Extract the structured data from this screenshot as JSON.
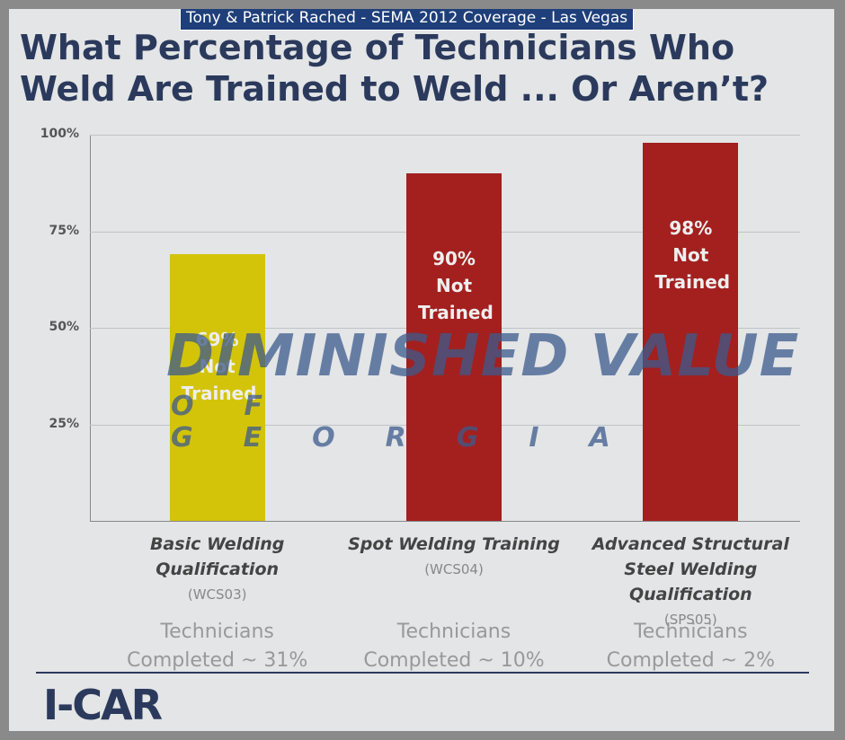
{
  "banner": "Tony & Patrick Rached - SEMA 2012 Coverage - Las Vegas",
  "watermark": {
    "line1": "DIMINISHED VALUE",
    "line2": "OF GEORGIA"
  },
  "logo": "I-CAR",
  "chart_data": {
    "type": "bar",
    "title": "What Percentage of Technicians Who Weld Are Trained to Weld ... Or Aren’t?",
    "categories": [
      "Basic Welding Qualification",
      "Spot Welding Training",
      "Advanced Structural Steel Welding Qualification"
    ],
    "category_codes": [
      "(WCS03)",
      "(WCS04)",
      "(SPS05)"
    ],
    "values": [
      69,
      90,
      98
    ],
    "value_labels": [
      "69%",
      "90%",
      "98%"
    ],
    "bar_note": "Not Trained",
    "colors": [
      "#d3c40a",
      "#a3201f",
      "#a3201f"
    ],
    "footnotes": [
      "Technicians Completed ~ 31%",
      "Technicians Completed ~ 10%",
      "Technicians Completed ~ 2%"
    ],
    "ylim": [
      0,
      100
    ],
    "yticks": [
      {
        "value": 25,
        "label": "25%"
      },
      {
        "value": 50,
        "label": "50%"
      },
      {
        "value": 75,
        "label": "75%"
      },
      {
        "value": 100,
        "label": "100%"
      }
    ],
    "grid": true
  }
}
